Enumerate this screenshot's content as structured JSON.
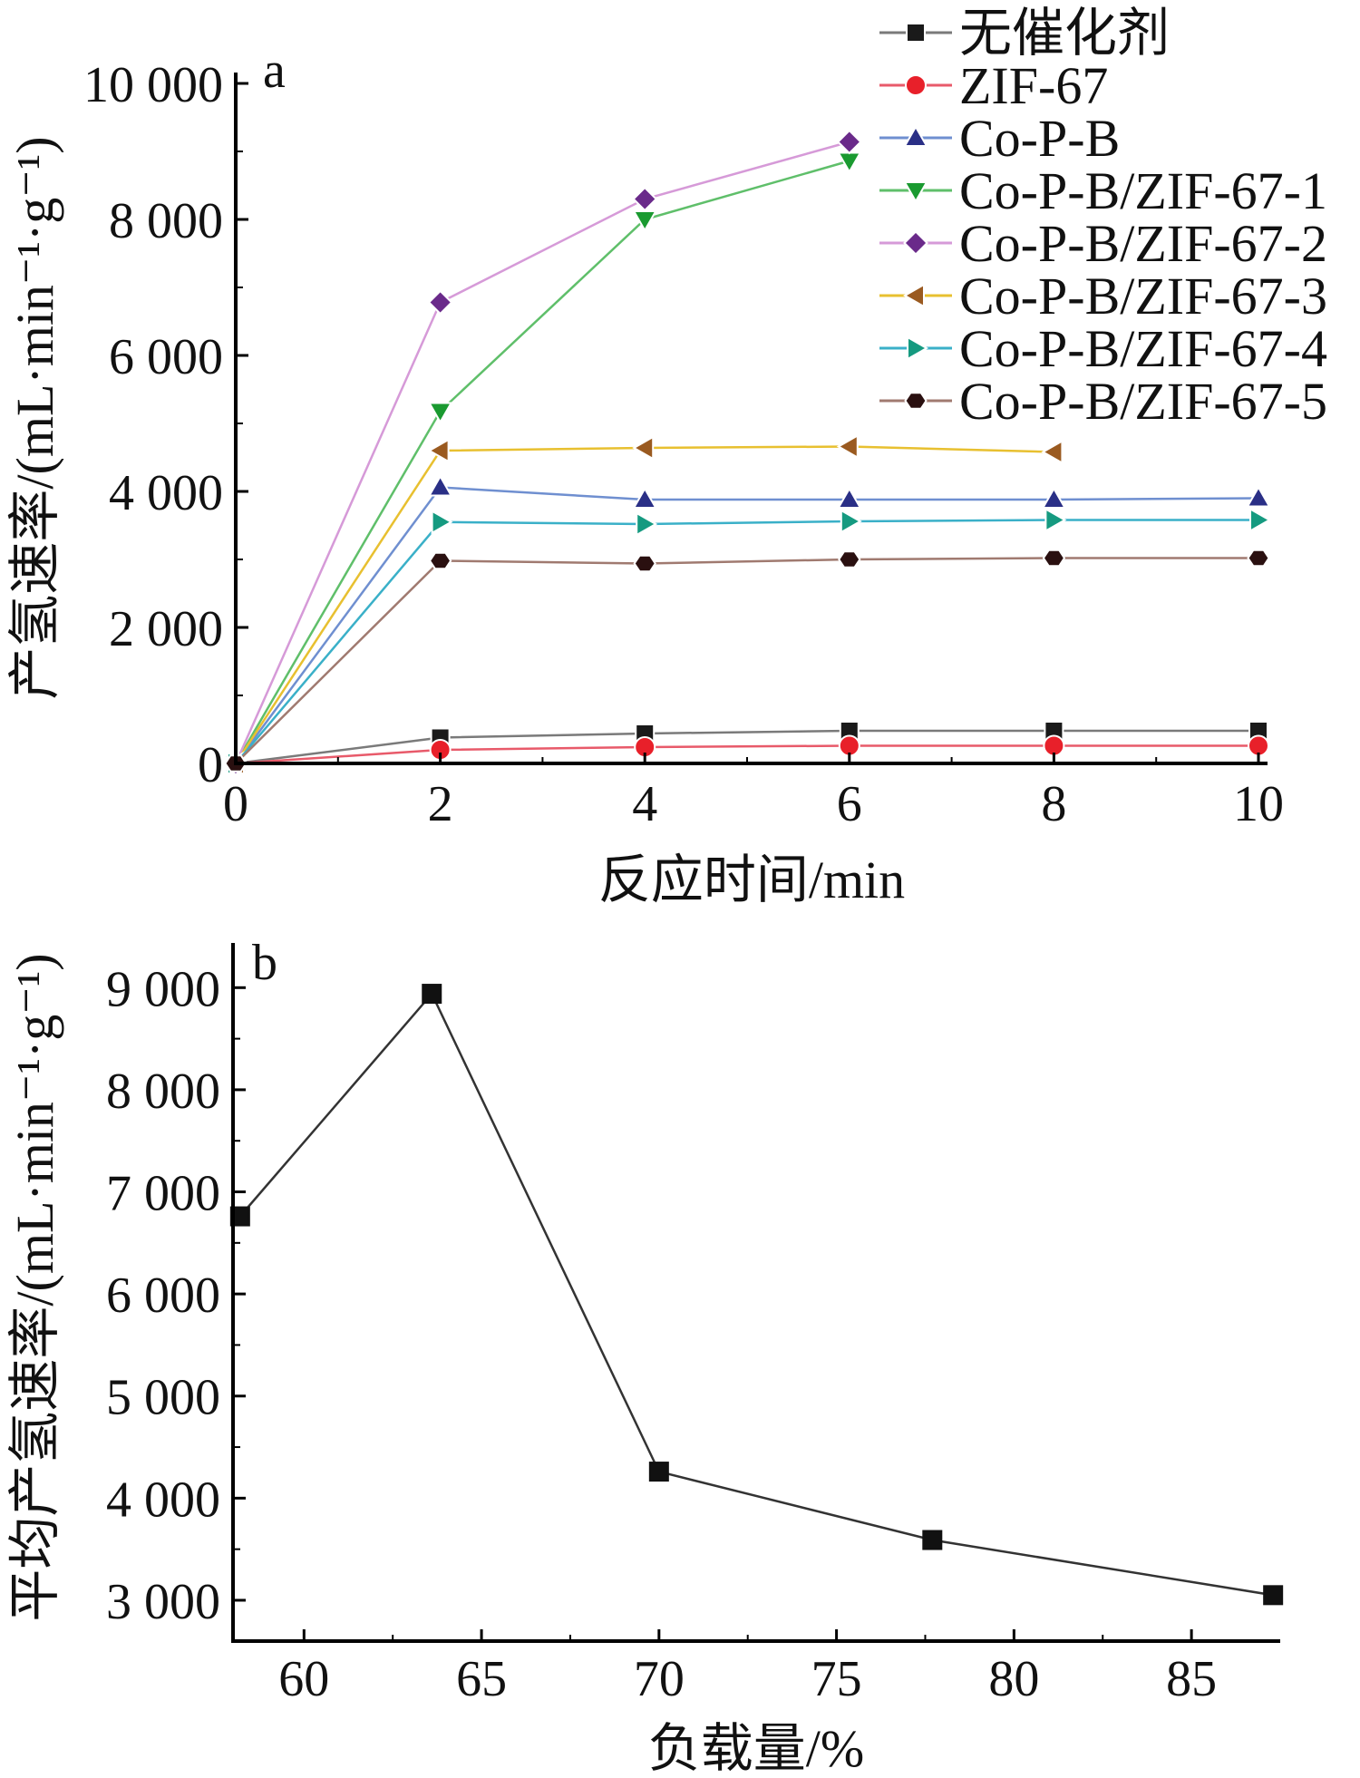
{
  "chart_data": [
    {
      "type": "line",
      "panel_label": "a",
      "xlabel": "反应时间/min",
      "ylabel": "产氢速率/(mL·min⁻¹·g⁻¹)",
      "xlim": [
        0,
        10
      ],
      "ylim": [
        0,
        10000
      ],
      "x_ticks": [
        0,
        2,
        4,
        6,
        8,
        10
      ],
      "x_tick_labels": [
        "0",
        "2",
        "4",
        "6",
        "8",
        "10"
      ],
      "y_ticks": [
        0,
        2000,
        4000,
        6000,
        8000,
        10000
      ],
      "y_tick_labels": [
        "0",
        "2 000",
        "4 000",
        "6 000",
        "8 000",
        "10 000"
      ],
      "grid": false,
      "legend_position": "top-right",
      "series": [
        {
          "name": "无催化剂",
          "marker": "square",
          "line_color": "#7a7a7a",
          "marker_color": "#1a1a1a",
          "x": [
            0,
            2,
            4,
            6,
            8,
            10
          ],
          "y": [
            0,
            380,
            440,
            480,
            480,
            480
          ]
        },
        {
          "name": "ZIF-67",
          "marker": "circle",
          "line_color": "#e85a6a",
          "marker_color": "#e8202a",
          "x": [
            0,
            2,
            4,
            6,
            8,
            10
          ],
          "y": [
            0,
            200,
            240,
            260,
            260,
            260
          ]
        },
        {
          "name": "Co-P-B",
          "marker": "triangle-up",
          "line_color": "#6f8fd0",
          "marker_color": "#2a2f86",
          "x": [
            0,
            2,
            4,
            6,
            8,
            10
          ],
          "y": [
            0,
            4060,
            3880,
            3880,
            3880,
            3900
          ]
        },
        {
          "name": "Co-P-B/ZIF-67-1",
          "marker": "triangle-down",
          "line_color": "#5fbf6a",
          "marker_color": "#1a9a30",
          "x": [
            0,
            2,
            4,
            6
          ],
          "y": [
            0,
            5180,
            8000,
            8860
          ]
        },
        {
          "name": "Co-P-B/ZIF-67-2",
          "marker": "diamond",
          "line_color": "#d69ad8",
          "marker_color": "#6a2a8a",
          "x": [
            0,
            2,
            4,
            6
          ],
          "y": [
            0,
            6780,
            8300,
            9140
          ]
        },
        {
          "name": "Co-P-B/ZIF-67-3",
          "marker": "triangle-left",
          "line_color": "#e8c030",
          "marker_color": "#9a5a20",
          "x": [
            0,
            2,
            4,
            6,
            8
          ],
          "y": [
            0,
            4600,
            4640,
            4660,
            4580
          ]
        },
        {
          "name": "Co-P-B/ZIF-67-4",
          "marker": "triangle-right",
          "line_color": "#3ab0c8",
          "marker_color": "#159a80",
          "x": [
            0,
            2,
            4,
            6,
            8,
            10
          ],
          "y": [
            0,
            3550,
            3520,
            3560,
            3580,
            3580
          ]
        },
        {
          "name": "Co-P-B/ZIF-67-5",
          "marker": "hexagon",
          "line_color": "#a07a70",
          "marker_color": "#2a1010",
          "x": [
            0,
            2,
            4,
            6,
            8,
            10
          ],
          "y": [
            0,
            2980,
            2940,
            3000,
            3020,
            3020
          ]
        }
      ]
    },
    {
      "type": "line",
      "panel_label": "b",
      "xlabel": "负载量/%",
      "ylabel": "平均产氢速率/(mL·min⁻¹·g⁻¹)",
      "xlim": [
        58,
        87.5
      ],
      "ylim": [
        2600,
        9500
      ],
      "x_ticks": [
        60,
        65,
        70,
        75,
        80,
        85
      ],
      "x_tick_labels": [
        "60",
        "65",
        "70",
        "75",
        "80",
        "85"
      ],
      "y_ticks": [
        3000,
        4000,
        5000,
        6000,
        7000,
        8000,
        9000
      ],
      "y_tick_labels": [
        "3 000",
        "4 000",
        "5 000",
        "6 000",
        "7 000",
        "8 000",
        "9 000"
      ],
      "grid": false,
      "series": [
        {
          "marker": "square",
          "line_color": "#333333",
          "marker_color": "#111111",
          "x": [
            58.2,
            63.6,
            70.0,
            77.7,
            87.3
          ],
          "y": [
            6760,
            8940,
            4260,
            3590,
            3050
          ]
        }
      ]
    }
  ]
}
